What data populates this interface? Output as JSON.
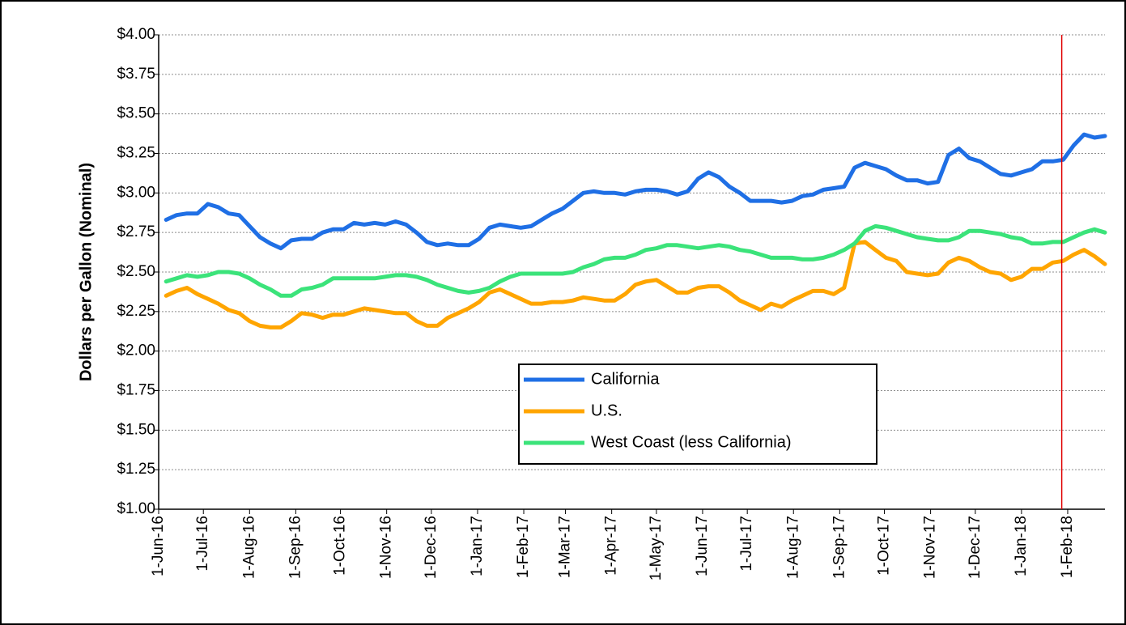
{
  "chart_data": {
    "type": "line",
    "y_label": "Dollars per Gallon (Nominal)",
    "xlim": [
      "2016-06-01",
      "2018-02-26"
    ],
    "xticks": [
      {
        "value": "2016-06-01",
        "label": "1-Jun-16"
      },
      {
        "value": "2016-07-01",
        "label": "1-Jul-16"
      },
      {
        "value": "2016-08-01",
        "label": "1-Aug-16"
      },
      {
        "value": "2016-09-01",
        "label": "1-Sep-16"
      },
      {
        "value": "2016-10-01",
        "label": "1-Oct-16"
      },
      {
        "value": "2016-11-01",
        "label": "1-Nov-16"
      },
      {
        "value": "2016-12-01",
        "label": "1-Dec-16"
      },
      {
        "value": "2017-01-01",
        "label": "1-Jan-17"
      },
      {
        "value": "2017-02-01",
        "label": "1-Feb-17"
      },
      {
        "value": "2017-03-01",
        "label": "1-Mar-17"
      },
      {
        "value": "2017-04-01",
        "label": "1-Apr-17"
      },
      {
        "value": "2017-05-01",
        "label": "1-May-17"
      },
      {
        "value": "2017-06-01",
        "label": "1-Jun-17"
      },
      {
        "value": "2017-07-01",
        "label": "1-Jul-17"
      },
      {
        "value": "2017-08-01",
        "label": "1-Aug-17"
      },
      {
        "value": "2017-09-01",
        "label": "1-Sep-17"
      },
      {
        "value": "2017-10-01",
        "label": "1-Oct-17"
      },
      {
        "value": "2017-11-01",
        "label": "1-Nov-17"
      },
      {
        "value": "2017-12-01",
        "label": "1-Dec-17"
      },
      {
        "value": "2018-01-01",
        "label": "1-Jan-18"
      },
      {
        "value": "2018-02-01",
        "label": "1-Feb-18"
      }
    ],
    "ylim": [
      1,
      4
    ],
    "yticks": [
      {
        "value": 1,
        "label": "$1.00"
      },
      {
        "value": 1.25,
        "label": "$1.25"
      },
      {
        "value": 1.5,
        "label": "$1.50"
      },
      {
        "value": 1.75,
        "label": "$1.75"
      },
      {
        "value": 2,
        "label": "$2.00"
      },
      {
        "value": 2.25,
        "label": "$2.25"
      },
      {
        "value": 2.5,
        "label": "$2.50"
      },
      {
        "value": 2.75,
        "label": "$2.75"
      },
      {
        "value": 3,
        "label": "$3.00"
      },
      {
        "value": 3.25,
        "label": "$3.25"
      },
      {
        "value": 3.5,
        "label": "$3.50"
      },
      {
        "value": 3.75,
        "label": "$3.75"
      },
      {
        "value": 4,
        "label": "$4.00"
      }
    ],
    "grid": true,
    "reference_line": {
      "x": "2018-01-28",
      "color": "#e00000"
    },
    "x": [
      "2016-06-06",
      "2016-06-13",
      "2016-06-20",
      "2016-06-27",
      "2016-07-04",
      "2016-07-11",
      "2016-07-18",
      "2016-07-25",
      "2016-08-01",
      "2016-08-08",
      "2016-08-15",
      "2016-08-22",
      "2016-08-29",
      "2016-09-05",
      "2016-09-12",
      "2016-09-19",
      "2016-09-26",
      "2016-10-03",
      "2016-10-10",
      "2016-10-17",
      "2016-10-24",
      "2016-10-31",
      "2016-11-07",
      "2016-11-14",
      "2016-11-21",
      "2016-11-28",
      "2016-12-05",
      "2016-12-12",
      "2016-12-19",
      "2016-12-26",
      "2017-01-02",
      "2017-01-09",
      "2017-01-16",
      "2017-01-23",
      "2017-01-30",
      "2017-02-06",
      "2017-02-13",
      "2017-02-20",
      "2017-02-27",
      "2017-03-06",
      "2017-03-13",
      "2017-03-20",
      "2017-03-27",
      "2017-04-03",
      "2017-04-10",
      "2017-04-17",
      "2017-04-24",
      "2017-05-01",
      "2017-05-08",
      "2017-05-15",
      "2017-05-22",
      "2017-05-29",
      "2017-06-05",
      "2017-06-12",
      "2017-06-19",
      "2017-06-26",
      "2017-07-03",
      "2017-07-10",
      "2017-07-17",
      "2017-07-24",
      "2017-07-31",
      "2017-08-07",
      "2017-08-14",
      "2017-08-21",
      "2017-08-28",
      "2017-09-04",
      "2017-09-11",
      "2017-09-18",
      "2017-09-25",
      "2017-10-02",
      "2017-10-09",
      "2017-10-16",
      "2017-10-23",
      "2017-10-30",
      "2017-11-06",
      "2017-11-13",
      "2017-11-20",
      "2017-11-27",
      "2017-12-04",
      "2017-12-11",
      "2017-12-18",
      "2017-12-25",
      "2018-01-01",
      "2018-01-08",
      "2018-01-15",
      "2018-01-22",
      "2018-01-29",
      "2018-02-05",
      "2018-02-12",
      "2018-02-19",
      "2018-02-26"
    ],
    "series": [
      {
        "name": "California",
        "color": "#1f6fe5",
        "values": [
          2.83,
          2.86,
          2.87,
          2.87,
          2.93,
          2.91,
          2.87,
          2.86,
          2.79,
          2.72,
          2.68,
          2.65,
          2.7,
          2.71,
          2.71,
          2.75,
          2.77,
          2.77,
          2.81,
          2.8,
          2.81,
          2.8,
          2.82,
          2.8,
          2.75,
          2.69,
          2.67,
          2.68,
          2.67,
          2.67,
          2.71,
          2.78,
          2.8,
          2.79,
          2.78,
          2.79,
          2.83,
          2.87,
          2.9,
          2.95,
          3.0,
          3.01,
          3.0,
          3.0,
          2.99,
          3.01,
          3.02,
          3.02,
          3.01,
          2.99,
          3.01,
          3.09,
          3.13,
          3.1,
          3.04,
          3.0,
          2.95,
          2.95,
          2.95,
          2.94,
          2.95,
          2.98,
          2.99,
          3.02,
          3.03,
          3.04,
          3.16,
          3.19,
          3.17,
          3.15,
          3.11,
          3.08,
          3.08,
          3.06,
          3.07,
          3.24,
          3.28,
          3.22,
          3.2,
          3.16,
          3.12,
          3.11,
          3.13,
          3.15,
          3.2,
          3.2,
          3.21,
          3.3,
          3.37,
          3.35,
          3.36
        ]
      },
      {
        "name": "U.S.",
        "color": "#ffa500",
        "values": [
          2.35,
          2.38,
          2.4,
          2.36,
          2.33,
          2.3,
          2.26,
          2.24,
          2.19,
          2.16,
          2.15,
          2.15,
          2.19,
          2.24,
          2.23,
          2.21,
          2.23,
          2.23,
          2.25,
          2.27,
          2.26,
          2.25,
          2.24,
          2.24,
          2.19,
          2.16,
          2.16,
          2.21,
          2.24,
          2.27,
          2.31,
          2.37,
          2.39,
          2.36,
          2.33,
          2.3,
          2.3,
          2.31,
          2.31,
          2.32,
          2.34,
          2.33,
          2.32,
          2.32,
          2.36,
          2.42,
          2.44,
          2.45,
          2.41,
          2.37,
          2.37,
          2.4,
          2.41,
          2.41,
          2.37,
          2.32,
          2.29,
          2.26,
          2.3,
          2.28,
          2.32,
          2.35,
          2.38,
          2.38,
          2.36,
          2.4,
          2.68,
          2.69,
          2.64,
          2.59,
          2.57,
          2.5,
          2.49,
          2.48,
          2.49,
          2.56,
          2.59,
          2.57,
          2.53,
          2.5,
          2.49,
          2.45,
          2.47,
          2.52,
          2.52,
          2.56,
          2.57,
          2.61,
          2.64,
          2.6,
          2.55
        ]
      },
      {
        "name": "West Coast (less California)",
        "color": "#3be37a",
        "values": [
          2.44,
          2.46,
          2.48,
          2.47,
          2.48,
          2.5,
          2.5,
          2.49,
          2.46,
          2.42,
          2.39,
          2.35,
          2.35,
          2.39,
          2.4,
          2.42,
          2.46,
          2.46,
          2.46,
          2.46,
          2.46,
          2.47,
          2.48,
          2.48,
          2.47,
          2.45,
          2.42,
          2.4,
          2.38,
          2.37,
          2.38,
          2.4,
          2.44,
          2.47,
          2.49,
          2.49,
          2.49,
          2.49,
          2.49,
          2.5,
          2.53,
          2.55,
          2.58,
          2.59,
          2.59,
          2.61,
          2.64,
          2.65,
          2.67,
          2.67,
          2.66,
          2.65,
          2.66,
          2.67,
          2.66,
          2.64,
          2.63,
          2.61,
          2.59,
          2.59,
          2.59,
          2.58,
          2.58,
          2.59,
          2.61,
          2.64,
          2.68,
          2.76,
          2.79,
          2.78,
          2.76,
          2.74,
          2.72,
          2.71,
          2.7,
          2.7,
          2.72,
          2.76,
          2.76,
          2.75,
          2.74,
          2.72,
          2.71,
          2.68,
          2.68,
          2.69,
          2.69,
          2.72,
          2.75,
          2.77,
          2.75
        ]
      }
    ]
  }
}
